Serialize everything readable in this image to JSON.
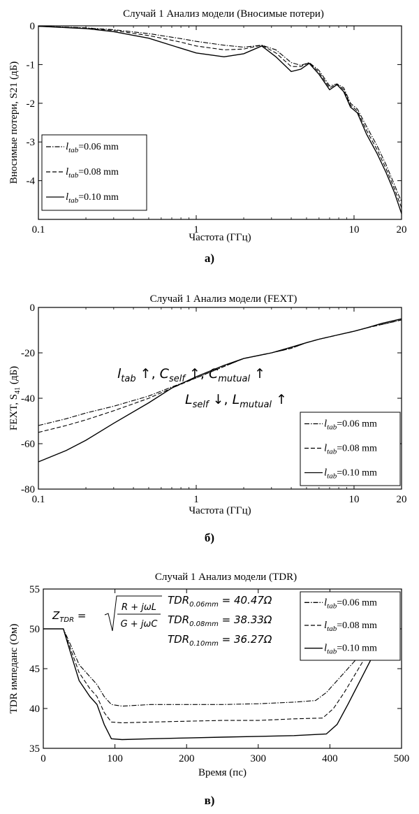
{
  "chart_data": [
    {
      "type": "line",
      "title": "Случай 1 Анализ модели (Вносимые потери)",
      "xlabel": "Частота (ГГц)",
      "ylabel": "Вносимые потери, S21 (дБ)",
      "panel_label": "а)",
      "x_scale": "log",
      "xlim": [
        0.1,
        20
      ],
      "ylim": [
        -5,
        0
      ],
      "xticks": [
        {
          "value": 0.1,
          "label": "0.1"
        },
        {
          "value": 1,
          "label": "1"
        },
        {
          "value": 10,
          "label": "10"
        },
        {
          "value": 20,
          "label": "20"
        }
      ],
      "yticks": [
        {
          "value": 0,
          "label": "0"
        },
        {
          "value": -1,
          "label": "-1"
        },
        {
          "value": -2,
          "label": "-2"
        },
        {
          "value": -3,
          "label": "-3"
        },
        {
          "value": -4,
          "label": "-4"
        }
      ],
      "legend_position": "bottom-left",
      "series": [
        {
          "name": "l_tab=0.06 mm",
          "label_main": "l",
          "label_sub": "tab",
          "label_rest": "=0.06 mm",
          "dash": "dashdot",
          "x": [
            0.1,
            0.2,
            0.3,
            0.5,
            0.8,
            1.0,
            1.5,
            2.0,
            2.6,
            3.2,
            4.0,
            4.6,
            5.2,
            6.0,
            7.0,
            7.8,
            8.6,
            9.5,
            10.5,
            12,
            14,
            16,
            18,
            20
          ],
          "y": [
            -0.01,
            -0.05,
            -0.1,
            -0.2,
            -0.33,
            -0.4,
            -0.5,
            -0.55,
            -0.5,
            -0.62,
            -0.95,
            -1.02,
            -0.95,
            -1.15,
            -1.55,
            -1.5,
            -1.6,
            -2.0,
            -2.15,
            -2.6,
            -3.1,
            -3.6,
            -4.1,
            -4.55
          ]
        },
        {
          "name": "l_tab=0.08 mm",
          "label_main": "l",
          "label_sub": "tab",
          "label_rest": "=0.08 mm",
          "dash": "dashed",
          "x": [
            0.1,
            0.2,
            0.3,
            0.5,
            0.8,
            1.0,
            1.5,
            2.0,
            2.6,
            3.2,
            4.0,
            4.6,
            5.2,
            6.0,
            7.0,
            7.8,
            8.6,
            9.5,
            10.5,
            12,
            14,
            16,
            18,
            20
          ],
          "y": [
            -0.01,
            -0.06,
            -0.12,
            -0.25,
            -0.42,
            -0.52,
            -0.62,
            -0.6,
            -0.5,
            -0.7,
            -1.05,
            -1.05,
            -0.95,
            -1.2,
            -1.6,
            -1.5,
            -1.65,
            -2.05,
            -2.2,
            -2.7,
            -3.2,
            -3.7,
            -4.2,
            -4.7
          ]
        },
        {
          "name": "l_tab=0.10 mm",
          "label_main": "l",
          "label_sub": "tab",
          "label_rest": "=0.10 mm",
          "dash": "solid",
          "x": [
            0.1,
            0.2,
            0.3,
            0.5,
            0.8,
            1.0,
            1.5,
            2.0,
            2.6,
            3.2,
            4.0,
            4.6,
            5.2,
            6.0,
            7.0,
            7.8,
            8.6,
            9.5,
            10.5,
            12,
            14,
            16,
            18,
            20
          ],
          "y": [
            -0.01,
            -0.07,
            -0.15,
            -0.32,
            -0.58,
            -0.7,
            -0.8,
            -0.72,
            -0.52,
            -0.8,
            -1.18,
            -1.12,
            -0.97,
            -1.25,
            -1.65,
            -1.52,
            -1.7,
            -2.1,
            -2.25,
            -2.8,
            -3.3,
            -3.8,
            -4.3,
            -4.85
          ]
        }
      ]
    },
    {
      "type": "line",
      "title": "Случай 1 Анализ модели (FEXT)",
      "xlabel": "Частота (ГГц)",
      "ylabel_main": "FEXT, S",
      "ylabel_sub": "41",
      "ylabel_unit": "(дБ)",
      "panel_label": "б)",
      "x_scale": "log",
      "xlim": [
        0.1,
        20
      ],
      "ylim": [
        -80,
        0
      ],
      "xticks": [
        {
          "value": 0.1,
          "label": "0.1"
        },
        {
          "value": 1,
          "label": "1"
        },
        {
          "value": 10,
          "label": "10"
        },
        {
          "value": 20,
          "label": "20"
        }
      ],
      "yticks": [
        {
          "value": 0,
          "label": "0"
        },
        {
          "value": -20,
          "label": "-20"
        },
        {
          "value": -40,
          "label": "-40"
        },
        {
          "value": -60,
          "label": "-60"
        },
        {
          "value": -80,
          "label": "-80"
        }
      ],
      "annotation_line1": [
        {
          "base": "l",
          "sub": "tab",
          "after": " ↑, "
        },
        {
          "base": "C",
          "sub": "self",
          "after": " ↑, "
        },
        {
          "base": "C",
          "sub": "mutual",
          "after": " ↑"
        }
      ],
      "annotation_line2": [
        {
          "base": "L",
          "sub": "self",
          "after": " ↓, "
        },
        {
          "base": "L",
          "sub": "mutual",
          "after": "  ↑"
        }
      ],
      "legend_position": "bottom-right",
      "series": [
        {
          "name": "l_tab=0.06 mm",
          "label_main": "l",
          "label_sub": "tab",
          "label_rest": "=0.06 mm",
          "dash": "dashdot",
          "x": [
            0.1,
            0.15,
            0.2,
            0.3,
            0.5,
            0.7,
            1.0,
            1.5,
            2.0,
            3.0,
            4.0,
            5.0,
            6.0,
            8.0,
            10.0,
            12,
            15,
            20
          ],
          "y": [
            -52,
            -49,
            -46.5,
            -43.5,
            -39,
            -35,
            -31,
            -26,
            -22.5,
            -20,
            -18,
            -15.5,
            -14,
            -12,
            -10.5,
            -9,
            -7.5,
            -5.5
          ]
        },
        {
          "name": "l_tab=0.08 mm",
          "label_main": "l",
          "label_sub": "tab",
          "label_rest": "=0.08 mm",
          "dash": "dashed",
          "x": [
            0.1,
            0.15,
            0.2,
            0.3,
            0.5,
            0.7,
            1.0,
            1.5,
            2.0,
            3.0,
            4.0,
            5.0,
            6.0,
            8.0,
            10.0,
            12,
            15,
            20
          ],
          "y": [
            -55,
            -52,
            -49.5,
            -45.5,
            -40,
            -35.5,
            -31,
            -26,
            -22.5,
            -20,
            -18,
            -15.5,
            -14,
            -12,
            -10.5,
            -9,
            -7.5,
            -5.5
          ]
        },
        {
          "name": "l_tab=0.10 mm",
          "label_main": "l",
          "label_sub": "tab",
          "label_rest": "=0.10 mm",
          "dash": "solid",
          "x": [
            0.1,
            0.15,
            0.2,
            0.3,
            0.5,
            0.7,
            1.0,
            1.5,
            2.0,
            3.0,
            4.0,
            5.0,
            6.0,
            8.0,
            10.0,
            12,
            15,
            20
          ],
          "y": [
            -68,
            -63,
            -58.5,
            -51,
            -42,
            -35.5,
            -30.5,
            -25.5,
            -22.5,
            -20,
            -17.5,
            -15.5,
            -14,
            -12,
            -10.5,
            -9,
            -7,
            -5
          ]
        }
      ]
    },
    {
      "type": "line",
      "title": "Случай 1 Анализ модели (TDR)",
      "xlabel": "Время (пс)",
      "ylabel": "TDR импеданс (Ом)",
      "panel_label": "в)",
      "x_scale": "linear",
      "xlim": [
        0,
        500
      ],
      "ylim": [
        35,
        55
      ],
      "xticks": [
        {
          "value": 0,
          "label": "0"
        },
        {
          "value": 100,
          "label": "100"
        },
        {
          "value": 200,
          "label": "200"
        },
        {
          "value": 300,
          "label": "300"
        },
        {
          "value": 400,
          "label": "400"
        },
        {
          "value": 500,
          "label": "500"
        }
      ],
      "yticks": [
        {
          "value": 35,
          "label": "35"
        },
        {
          "value": 40,
          "label": "40"
        },
        {
          "value": 45,
          "label": "45"
        },
        {
          "value": 50,
          "label": "50"
        },
        {
          "value": 55,
          "label": "55"
        }
      ],
      "formula": {
        "lhs_base": "Z",
        "lhs_sub": "TDR",
        "eq": " =",
        "numerator": "R + jωL",
        "denominator": "G + jωC"
      },
      "tdr_values": [
        {
          "base": "TDR",
          "sub": "0.06mm",
          "value": " = 40.47Ω"
        },
        {
          "base": "TDR",
          "sub": "0.08mm",
          "value": " = 38.33Ω"
        },
        {
          "base": "TDR",
          "sub": "0.10mm",
          "value": " = 36.27Ω"
        }
      ],
      "legend_position": "top-right",
      "series": [
        {
          "name": "l_tab=0.06 mm",
          "label_main": "l",
          "label_sub": "tab",
          "label_rest": "=0.06 mm",
          "dash": "dashdot",
          "x": [
            0,
            28,
            38,
            50,
            65,
            75,
            85,
            95,
            110,
            150,
            200,
            250,
            300,
            350,
            380,
            395,
            410,
            430,
            450,
            470
          ],
          "y": [
            50,
            50,
            48,
            45.5,
            44,
            43,
            41.5,
            40.5,
            40.3,
            40.5,
            40.5,
            40.5,
            40.6,
            40.8,
            41,
            42,
            43.5,
            45.5,
            47.5,
            49.5
          ]
        },
        {
          "name": "l_tab=0.08 mm",
          "label_main": "l",
          "label_sub": "tab",
          "label_rest": "=0.08 mm",
          "dash": "dashed",
          "x": [
            0,
            28,
            38,
            50,
            65,
            75,
            85,
            95,
            110,
            150,
            200,
            250,
            300,
            350,
            390,
            405,
            420,
            440,
            460,
            475
          ],
          "y": [
            50,
            50,
            47.5,
            44.5,
            42.5,
            41.5,
            39.5,
            38.3,
            38.2,
            38.3,
            38.4,
            38.5,
            38.5,
            38.7,
            38.8,
            40,
            42,
            45,
            48,
            50
          ]
        },
        {
          "name": "l_tab=0.10 mm",
          "label_main": "l",
          "label_sub": "tab",
          "label_rest": "=0.10 mm",
          "dash": "solid",
          "x": [
            0,
            28,
            38,
            50,
            65,
            75,
            85,
            95,
            110,
            150,
            200,
            250,
            300,
            350,
            395,
            410,
            425,
            445,
            465,
            480
          ],
          "y": [
            50,
            50,
            47,
            43.5,
            41.5,
            40.5,
            38,
            36.2,
            36.1,
            36.2,
            36.3,
            36.4,
            36.5,
            36.6,
            36.8,
            38,
            40.5,
            44,
            47.5,
            50
          ]
        }
      ]
    }
  ]
}
